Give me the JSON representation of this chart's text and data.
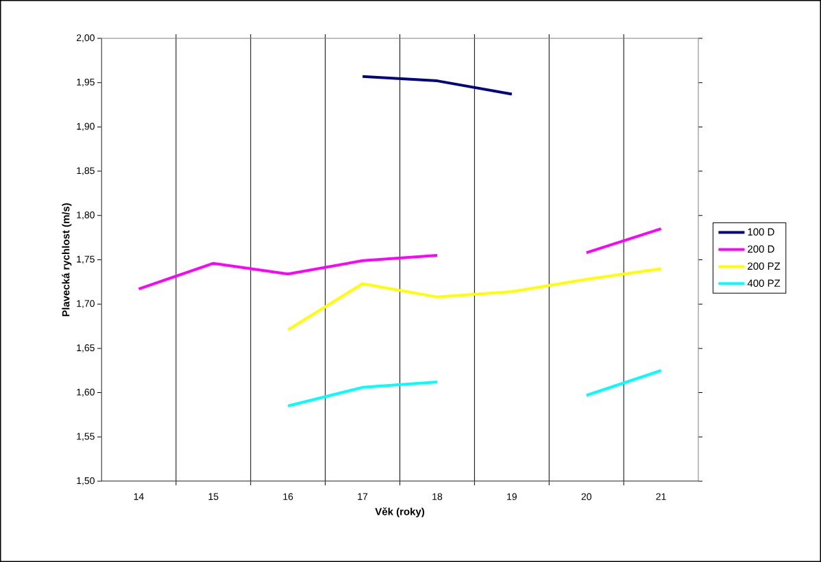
{
  "chart_data": {
    "type": "line",
    "xlabel": "Věk (roky)",
    "ylabel": "Plavecká rychlost (m/s)",
    "categories": [
      "14",
      "15",
      "16",
      "17",
      "18",
      "19",
      "20",
      "21"
    ],
    "series": [
      {
        "name": "100 D",
        "color": "#000080",
        "values": [
          null,
          null,
          null,
          1.957,
          1.952,
          1.937,
          null,
          null
        ]
      },
      {
        "name": "200 D",
        "color": "#ff00ff",
        "values": [
          1.717,
          1.746,
          1.734,
          1.749,
          1.755,
          null,
          1.758,
          1.785
        ]
      },
      {
        "name": "200 PZ",
        "color": "#ffff00",
        "values": [
          null,
          null,
          1.671,
          1.723,
          1.708,
          1.714,
          1.728,
          1.74
        ]
      },
      {
        "name": "400 PZ",
        "color": "#00ffff",
        "values": [
          null,
          null,
          1.585,
          1.606,
          1.612,
          null,
          1.597,
          1.625
        ]
      }
    ],
    "ylim": [
      1.5,
      2.0
    ],
    "yticks": [
      {
        "value": 1.5,
        "label": "1,50"
      },
      {
        "value": 1.55,
        "label": "1,55"
      },
      {
        "value": 1.6,
        "label": "1,60"
      },
      {
        "value": 1.65,
        "label": "1,65"
      },
      {
        "value": 1.7,
        "label": "1,70"
      },
      {
        "value": 1.75,
        "label": "1,75"
      },
      {
        "value": 1.8,
        "label": "1,80"
      },
      {
        "value": 1.85,
        "label": "1,85"
      },
      {
        "value": 1.9,
        "label": "1,90"
      },
      {
        "value": 1.95,
        "label": "1,95"
      },
      {
        "value": 2.0,
        "label": "2,00"
      }
    ],
    "grid": "x",
    "legend": "right",
    "marker": "none",
    "line_style": "solid"
  }
}
